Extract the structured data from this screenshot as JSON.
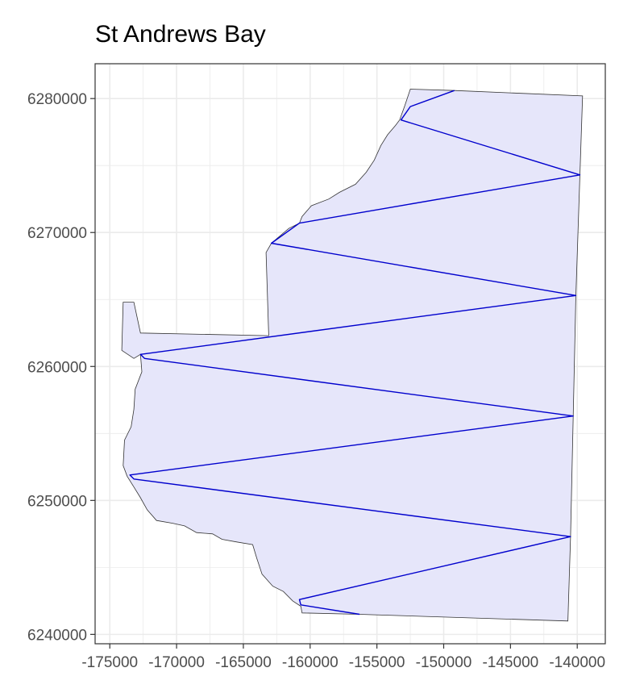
{
  "chart_data": {
    "type": "map",
    "title": "St Andrews Bay",
    "xlabel": "",
    "ylabel": "",
    "xlim": [
      -176100,
      -137900
    ],
    "ylim": [
      6239300,
      6282600
    ],
    "x_ticks": [
      -175000,
      -170000,
      -165000,
      -160000,
      -155000,
      -150000,
      -145000,
      -140000
    ],
    "y_ticks": [
      6240000,
      6250000,
      6260000,
      6270000,
      6280000
    ],
    "grid": true,
    "colors": {
      "polygon_fill": "#e6e6fa",
      "polygon_stroke": "#333333",
      "transect": "#0000cd",
      "grid": "#ebebeb",
      "panel_border": "#333333"
    },
    "region_polygon": [
      [
        -152500,
        6280700
      ],
      [
        -149200,
        6280600
      ],
      [
        -139600,
        6280200
      ],
      [
        -139800,
        6274300
      ],
      [
        -140100,
        6265300
      ],
      [
        -140300,
        6256300
      ],
      [
        -140500,
        6247300
      ],
      [
        -140700,
        6241000
      ],
      [
        -156300,
        6241500
      ],
      [
        -160600,
        6241600
      ],
      [
        -160700,
        6242100
      ],
      [
        -161300,
        6242500
      ],
      [
        -162000,
        6243200
      ],
      [
        -162800,
        6243600
      ],
      [
        -163600,
        6244500
      ],
      [
        -164000,
        6245700
      ],
      [
        -164300,
        6246700
      ],
      [
        -165500,
        6246900
      ],
      [
        -166600,
        6247100
      ],
      [
        -167300,
        6247500
      ],
      [
        -168500,
        6247600
      ],
      [
        -169400,
        6248100
      ],
      [
        -170300,
        6248300
      ],
      [
        -171500,
        6248500
      ],
      [
        -172200,
        6249300
      ],
      [
        -172700,
        6250200
      ],
      [
        -173200,
        6251000
      ],
      [
        -173700,
        6251800
      ],
      [
        -174000,
        6252600
      ],
      [
        -173900,
        6254500
      ],
      [
        -173400,
        6255500
      ],
      [
        -173200,
        6256800
      ],
      [
        -173100,
        6258300
      ],
      [
        -172600,
        6259600
      ],
      [
        -172700,
        6260900
      ],
      [
        -173200,
        6260600
      ],
      [
        -174100,
        6261200
      ],
      [
        -174000,
        6264800
      ],
      [
        -173200,
        6264800
      ],
      [
        -172700,
        6262500
      ],
      [
        -163100,
        6262300
      ],
      [
        -163300,
        6268500
      ],
      [
        -162900,
        6269200
      ],
      [
        -161600,
        6270300
      ],
      [
        -160800,
        6270700
      ],
      [
        -160600,
        6271200
      ],
      [
        -159900,
        6272000
      ],
      [
        -158600,
        6272500
      ],
      [
        -157800,
        6273000
      ],
      [
        -156600,
        6273600
      ],
      [
        -155800,
        6274500
      ],
      [
        -155200,
        6275400
      ],
      [
        -154700,
        6276500
      ],
      [
        -154200,
        6277300
      ],
      [
        -153600,
        6278000
      ],
      [
        -153300,
        6278400
      ],
      [
        -152900,
        6279500
      ]
    ],
    "transect_path": [
      [
        -149200,
        6280600
      ],
      [
        -152500,
        6279400
      ],
      [
        -153200,
        6278400
      ],
      [
        -139800,
        6274300
      ],
      [
        -160800,
        6270700
      ],
      [
        -162900,
        6269200
      ],
      [
        -140100,
        6265300
      ],
      [
        -172700,
        6260900
      ],
      [
        -172400,
        6260600
      ],
      [
        -140300,
        6256300
      ],
      [
        -173500,
        6251900
      ],
      [
        -173200,
        6251600
      ],
      [
        -140500,
        6247300
      ],
      [
        -160800,
        6242600
      ],
      [
        -160700,
        6242200
      ],
      [
        -156300,
        6241500
      ]
    ]
  }
}
